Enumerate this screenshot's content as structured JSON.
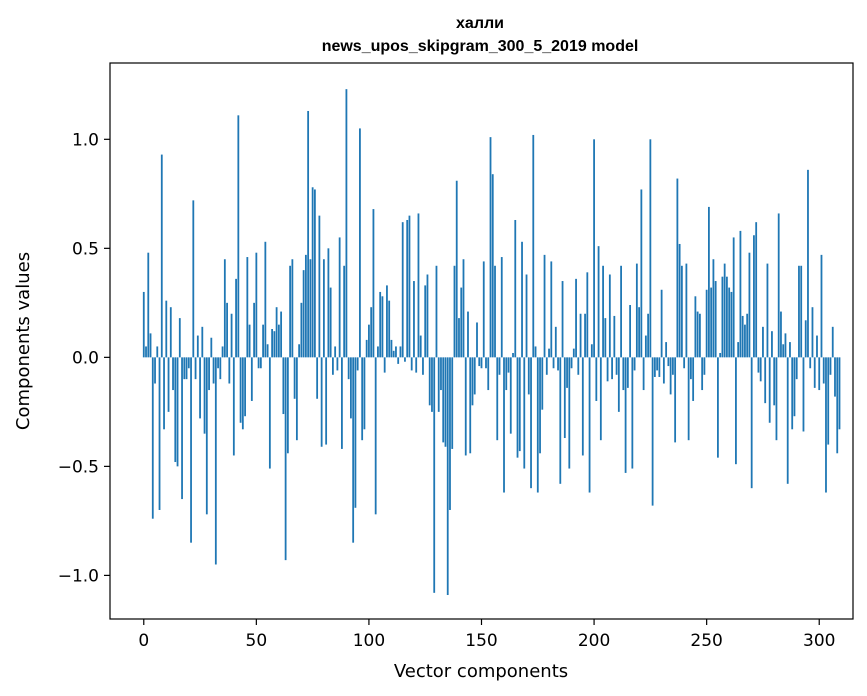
{
  "chart_data": {
    "type": "bar",
    "title": "халли",
    "subtitle": "news_upos_skipgram_300_5_2019 model",
    "xlabel": "Vector components",
    "ylabel": "Components values",
    "xlim": [
      -15,
      315
    ],
    "ylim": [
      -1.2,
      1.35
    ],
    "xticks": [
      0,
      50,
      100,
      150,
      200,
      250,
      300
    ],
    "xtick_labels": [
      "0",
      "50",
      "100",
      "150",
      "200",
      "250",
      "300"
    ],
    "yticks": [
      -1.0,
      -0.5,
      0.0,
      0.5,
      1.0
    ],
    "ytick_labels": [
      "−1.0",
      "−0.5",
      "0.0",
      "0.5",
      "1.0"
    ],
    "bar_color": "#1f77b4",
    "values": [
      0.3,
      0.05,
      0.48,
      0.11,
      -0.74,
      -0.12,
      0.05,
      -0.7,
      0.93,
      -0.33,
      0.26,
      -0.25,
      0.23,
      -0.15,
      -0.48,
      -0.5,
      0.18,
      -0.65,
      -0.1,
      -0.1,
      -0.05,
      -0.85,
      0.72,
      -0.1,
      0.1,
      -0.28,
      0.14,
      -0.35,
      -0.72,
      -0.15,
      0.09,
      -0.12,
      -0.95,
      -0.05,
      -0.1,
      0.05,
      0.45,
      0.25,
      -0.12,
      0.2,
      -0.45,
      0.36,
      1.11,
      -0.3,
      -0.33,
      -0.27,
      0.46,
      0.15,
      -0.2,
      0.25,
      0.48,
      -0.05,
      -0.05,
      0.15,
      0.53,
      0.06,
      -0.51,
      0.13,
      0.12,
      0.23,
      0.15,
      0.21,
      -0.26,
      -0.93,
      -0.44,
      0.42,
      0.45,
      -0.19,
      -0.38,
      0.06,
      0.25,
      0.4,
      0.47,
      1.13,
      0.45,
      0.78,
      0.77,
      -0.19,
      0.65,
      -0.41,
      0.45,
      -0.4,
      0.5,
      0.32,
      -0.08,
      0.05,
      -0.06,
      0.55,
      -0.42,
      0.42,
      1.23,
      -0.1,
      -0.28,
      -0.85,
      -0.69,
      -0.06,
      1.05,
      -0.38,
      -0.33,
      0.08,
      0.15,
      0.23,
      0.68,
      -0.72,
      0.05,
      0.3,
      0.28,
      -0.07,
      0.33,
      0.26,
      0.08,
      0.03,
      0.05,
      -0.03,
      0.05,
      0.62,
      -0.02,
      0.63,
      0.65,
      -0.06,
      0.35,
      -0.07,
      0.66,
      0.1,
      -0.08,
      0.33,
      0.38,
      -0.22,
      -0.25,
      -1.08,
      0.42,
      -0.25,
      -0.15,
      -0.39,
      -0.41,
      -1.09,
      -0.7,
      -0.42,
      0.42,
      0.81,
      0.18,
      0.32,
      0.45,
      -0.45,
      0.21,
      -0.44,
      -0.22,
      -0.17,
      0.16,
      -0.04,
      -0.05,
      0.44,
      -0.05,
      -0.15,
      1.01,
      0.84,
      0.42,
      -0.38,
      -0.08,
      0.46,
      -0.62,
      -0.15,
      -0.07,
      -0.35,
      0.02,
      0.63,
      -0.46,
      -0.43,
      0.53,
      -0.51,
      0.38,
      -0.17,
      -0.6,
      1.02,
      0.05,
      -0.62,
      -0.44,
      -0.24,
      0.47,
      -0.08,
      0.04,
      0.44,
      -0.05,
      0.14,
      -0.06,
      -0.58,
      0.35,
      -0.37,
      -0.14,
      -0.51,
      -0.05,
      0.04,
      0.36,
      -0.08,
      0.2,
      -0.45,
      0.2,
      0.39,
      -0.62,
      0.06,
      1.0,
      -0.2,
      0.51,
      -0.38,
      0.42,
      0.18,
      -0.11,
      0.38,
      -0.1,
      0.19,
      -0.08,
      -0.25,
      0.42,
      -0.15,
      -0.53,
      -0.14,
      0.24,
      -0.51,
      -0.06,
      0.43,
      0.23,
      0.77,
      -0.15,
      0.1,
      0.2,
      1.0,
      -0.68,
      -0.09,
      -0.06,
      -0.09,
      0.31,
      -0.12,
      0.07,
      -0.04,
      -0.17,
      -0.08,
      -0.39,
      0.82,
      0.52,
      0.42,
      -0.05,
      0.43,
      -0.38,
      -0.1,
      -0.2,
      0.28,
      0.21,
      0.2,
      -0.15,
      -0.08,
      0.31,
      0.69,
      0.32,
      0.45,
      0.35,
      -0.46,
      0.02,
      0.37,
      0.43,
      0.37,
      0.32,
      0.3,
      0.55,
      -0.49,
      0.07,
      0.58,
      0.19,
      0.15,
      0.2,
      0.48,
      -0.6,
      0.56,
      0.62,
      -0.07,
      -0.11,
      0.14,
      -0.21,
      0.43,
      -0.3,
      0.12,
      -0.22,
      -0.38,
      0.66,
      0.21,
      0.06,
      0.11,
      -0.58,
      0.07,
      -0.33,
      -0.27,
      -0.1,
      0.42,
      0.42,
      -0.34,
      0.17,
      0.86,
      -0.05,
      0.23,
      -0.14,
      0.1,
      -0.15,
      0.47,
      -0.12,
      -0.62,
      -0.4,
      -0.08,
      0.14,
      -0.18,
      -0.44,
      -0.33
    ]
  }
}
